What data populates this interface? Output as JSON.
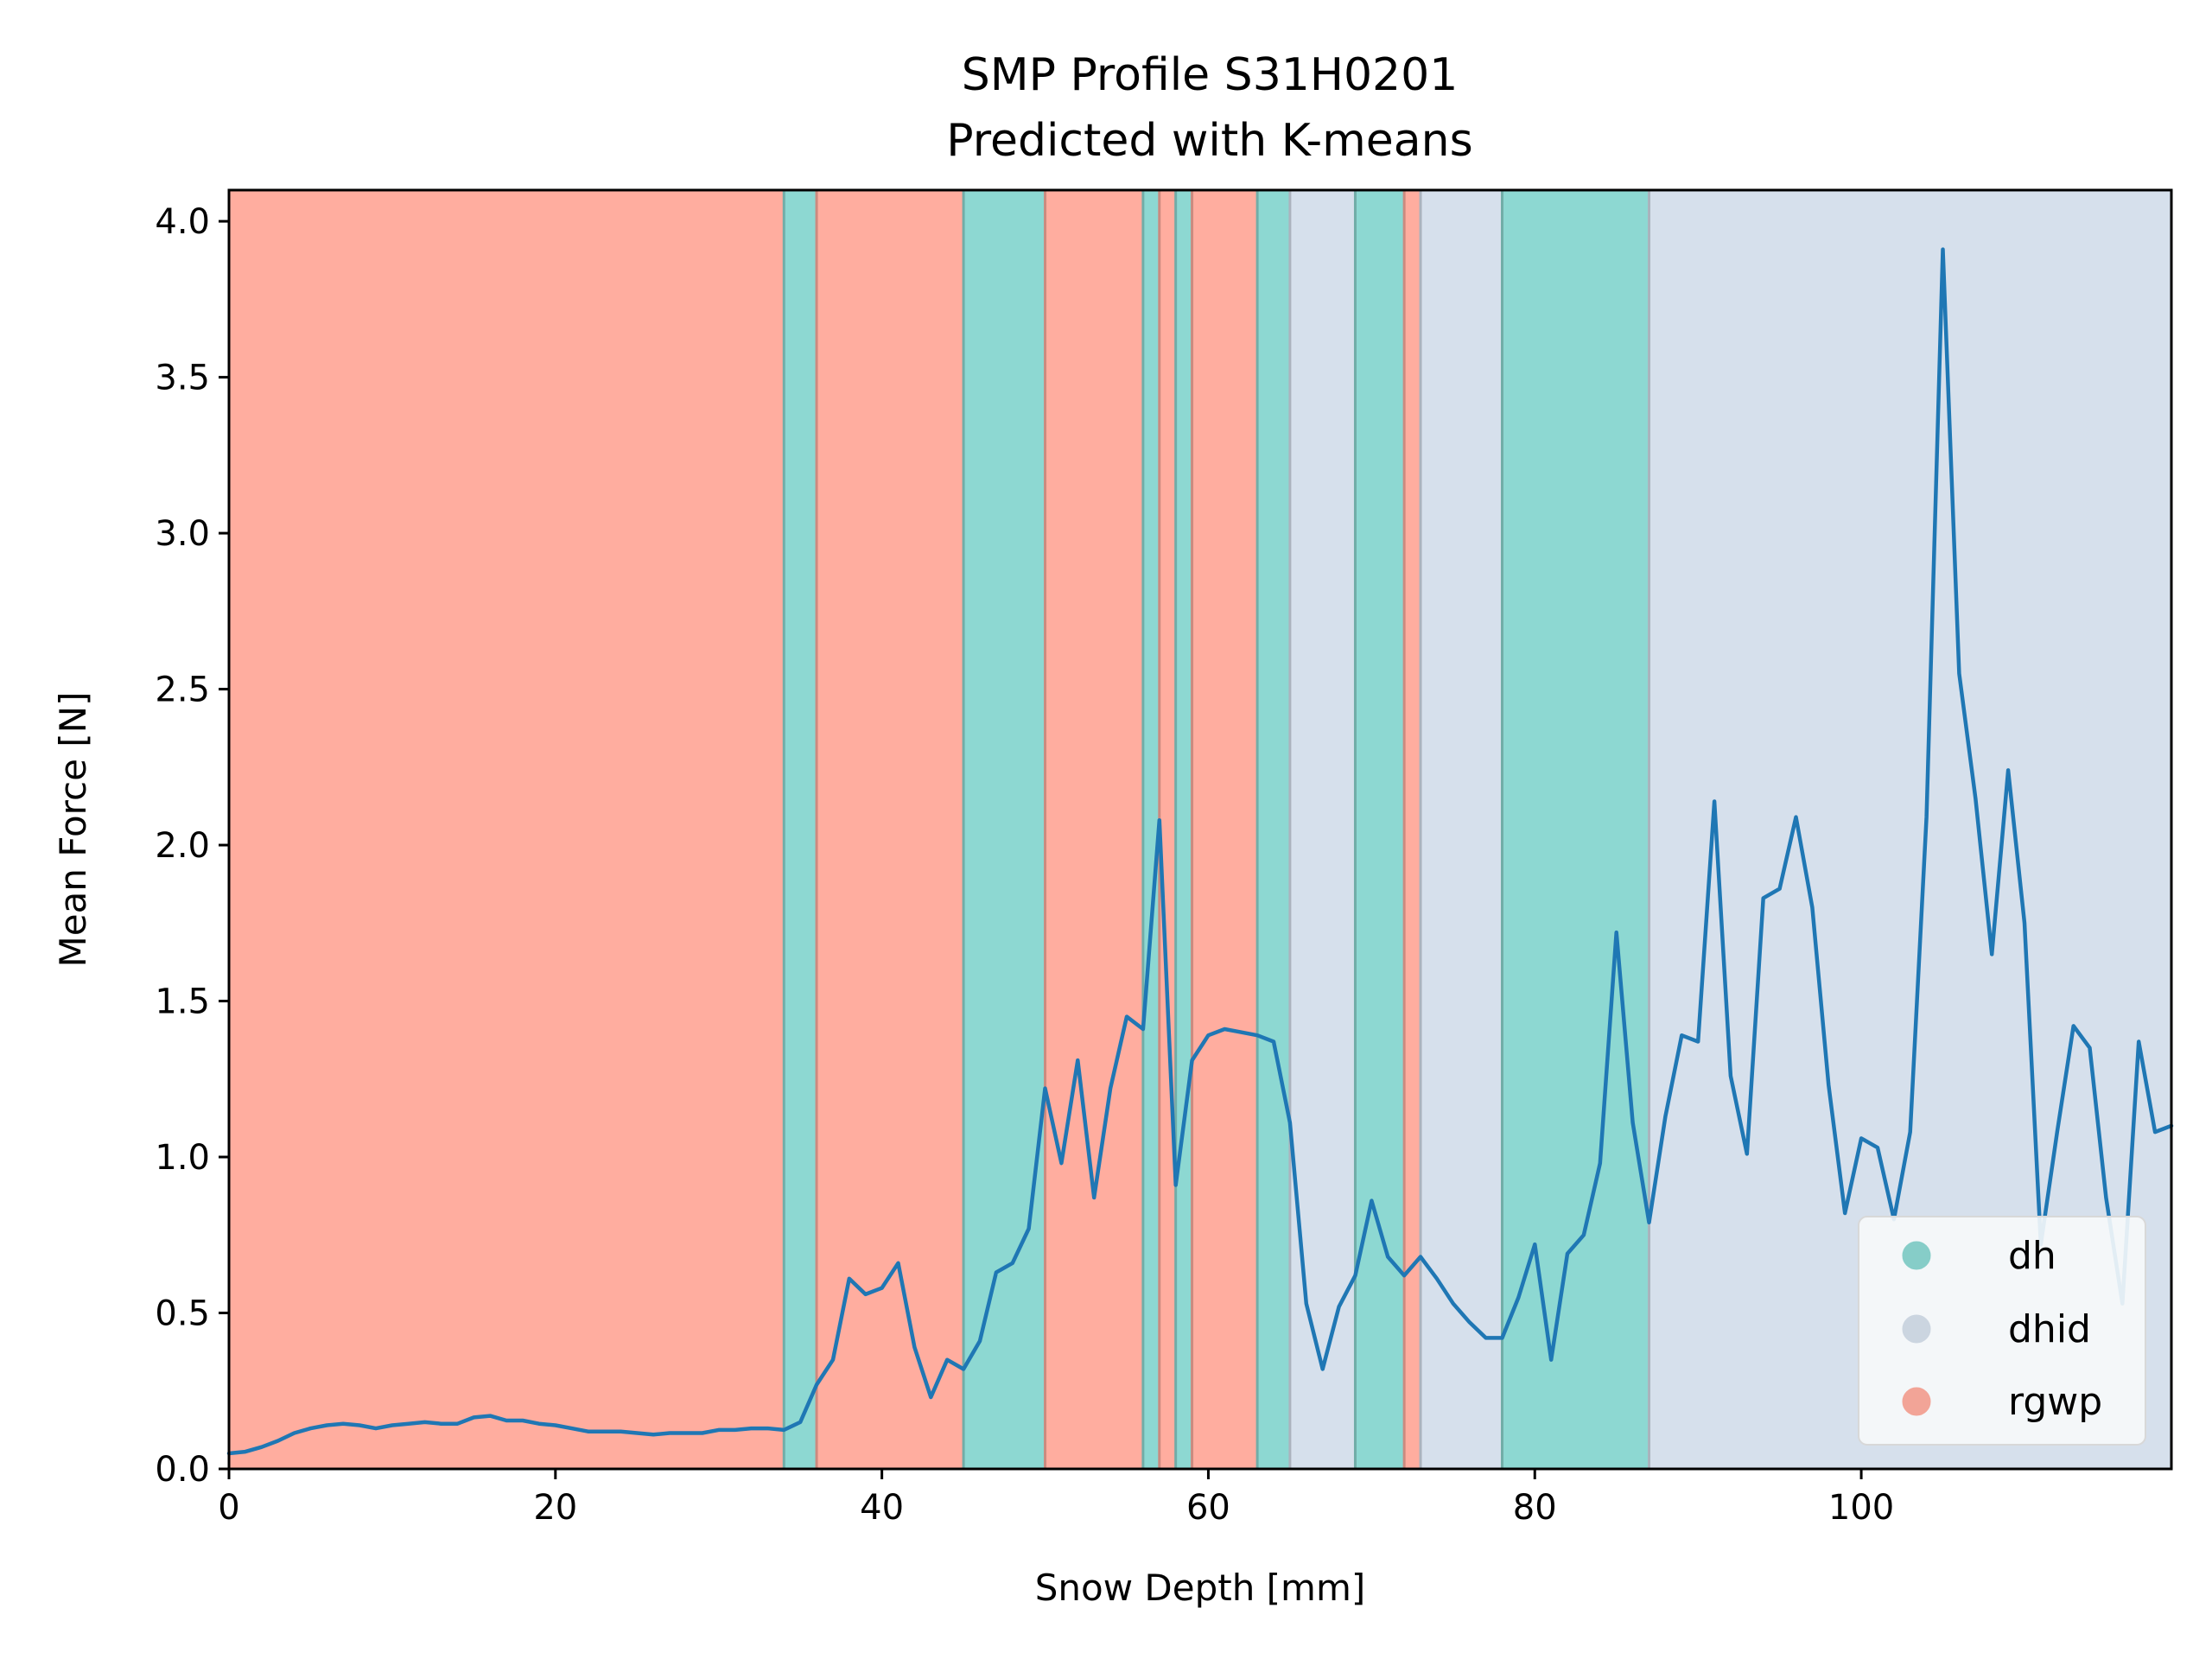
{
  "chart_data": {
    "type": "line",
    "title": "SMP Profile S31H0201",
    "subtitle": "Predicted with K-means",
    "xlabel": "Snow Depth [mm]",
    "ylabel": "Mean Force [N]",
    "xlim": [
      0,
      119
    ],
    "ylim": [
      0,
      4.1
    ],
    "xticks": [
      "0",
      "20",
      "40",
      "60",
      "80",
      "100"
    ],
    "xtick_values": [
      0,
      20,
      40,
      60,
      80,
      100
    ],
    "yticks": [
      "0.0",
      "0.5",
      "1.0",
      "1.5",
      "2.0",
      "2.5",
      "3.0",
      "3.5",
      "4.0"
    ],
    "ytick_values": [
      0,
      0.5,
      1.0,
      1.5,
      2.0,
      2.5,
      3.0,
      3.5,
      4.0
    ],
    "grid": false,
    "legend_position": "lower-right",
    "line_color": "#1f77b4",
    "classes": [
      {
        "name": "dh",
        "color": "#8dd8d2"
      },
      {
        "name": "dhid",
        "color": "#d6e0ec"
      },
      {
        "name": "rgwp",
        "color": "#ffad9f"
      }
    ],
    "segments": [
      {
        "start": 0,
        "end": 34,
        "class": "rgwp"
      },
      {
        "start": 34,
        "end": 36,
        "class": "dh"
      },
      {
        "start": 36,
        "end": 45,
        "class": "rgwp"
      },
      {
        "start": 45,
        "end": 50,
        "class": "dh"
      },
      {
        "start": 50,
        "end": 56,
        "class": "rgwp"
      },
      {
        "start": 56,
        "end": 57,
        "class": "dh"
      },
      {
        "start": 57,
        "end": 58,
        "class": "rgwp"
      },
      {
        "start": 58,
        "end": 59,
        "class": "dh"
      },
      {
        "start": 59,
        "end": 63,
        "class": "rgwp"
      },
      {
        "start": 63,
        "end": 65,
        "class": "dh"
      },
      {
        "start": 65,
        "end": 69,
        "class": "dhid"
      },
      {
        "start": 69,
        "end": 72,
        "class": "dh"
      },
      {
        "start": 72,
        "end": 73,
        "class": "rgwp"
      },
      {
        "start": 73,
        "end": 78,
        "class": "dhid"
      },
      {
        "start": 78,
        "end": 87,
        "class": "dh"
      },
      {
        "start": 87,
        "end": 119,
        "class": "dhid"
      }
    ],
    "series": [
      {
        "x": [
          0,
          1,
          2,
          3,
          4,
          5,
          6,
          7,
          8,
          9,
          10,
          11,
          12,
          13,
          14,
          15,
          16,
          17,
          18,
          19,
          20,
          21,
          22,
          23,
          24,
          25,
          26,
          27,
          28,
          29,
          30,
          31,
          32,
          33,
          34,
          35,
          36,
          37,
          38,
          39,
          40,
          41,
          42,
          43,
          44,
          45,
          46,
          47,
          48,
          49,
          50,
          51,
          52,
          53,
          54,
          55,
          56,
          57,
          58,
          59,
          60,
          61,
          62,
          63,
          64,
          65,
          66,
          67,
          68,
          69,
          70,
          71,
          72,
          73,
          74,
          75,
          76,
          77,
          78,
          79,
          80,
          81,
          82,
          83,
          84,
          85,
          86,
          87,
          88,
          89,
          90,
          91,
          92,
          93,
          94,
          95,
          96,
          97,
          98,
          99,
          100,
          101,
          102,
          103,
          104,
          105,
          106,
          107,
          108,
          109,
          110,
          111,
          112,
          113,
          114,
          115,
          116,
          117,
          118,
          119
        ],
        "y": [
          0.05,
          0.055,
          0.07,
          0.09,
          0.115,
          0.13,
          0.14,
          0.145,
          0.14,
          0.13,
          0.14,
          0.145,
          0.15,
          0.145,
          0.145,
          0.165,
          0.17,
          0.155,
          0.155,
          0.145,
          0.14,
          0.13,
          0.12,
          0.12,
          0.12,
          0.115,
          0.11,
          0.115,
          0.115,
          0.115,
          0.125,
          0.125,
          0.13,
          0.13,
          0.125,
          0.15,
          0.27,
          0.35,
          0.61,
          0.56,
          0.58,
          0.66,
          0.39,
          0.23,
          0.35,
          0.32,
          0.41,
          0.63,
          0.66,
          0.77,
          1.22,
          0.98,
          1.31,
          0.87,
          1.22,
          1.45,
          1.41,
          2.08,
          0.91,
          1.31,
          1.39,
          1.41,
          1.4,
          1.39,
          1.37,
          1.11,
          0.53,
          0.32,
          0.52,
          0.62,
          0.86,
          0.68,
          0.62,
          0.68,
          0.61,
          0.53,
          0.47,
          0.42,
          0.42,
          0.55,
          0.72,
          0.35,
          0.69,
          0.75,
          0.98,
          1.72,
          1.11,
          0.79,
          1.13,
          1.39,
          1.37,
          2.14,
          1.26,
          1.01,
          1.83,
          1.86,
          2.09,
          1.8,
          1.23,
          0.82,
          1.06,
          1.03,
          0.8,
          1.08,
          2.09,
          3.91,
          2.55,
          2.15,
          1.65,
          2.24,
          1.75,
          0.72,
          1.08,
          1.42,
          1.35,
          0.87,
          0.53,
          1.37,
          1.08,
          1.1
        ]
      }
    ]
  }
}
